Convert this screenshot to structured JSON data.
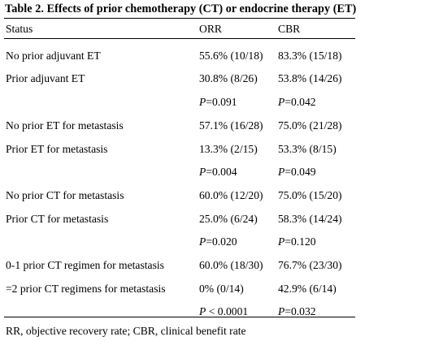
{
  "title": "Table 2. Effects of prior chemotherapy (CT) or endocrine therapy (ET)",
  "columns": [
    "Status",
    "ORR",
    "CBR"
  ],
  "rows": [
    {
      "status": "No prior adjuvant ET",
      "orr": "55.6% (10/18)",
      "cbr": "83.3% (15/18)"
    },
    {
      "status": "Prior adjuvant ET",
      "orr": "30.8% (8/26)",
      "cbr": "53.8% (14/26)"
    },
    {
      "status": "",
      "orr_p": "=0.091",
      "cbr_p": "=0.042"
    },
    {
      "status": "No prior ET for metastasis",
      "orr": "57.1% (16/28)",
      "cbr": "75.0% (21/28)"
    },
    {
      "status": "Prior ET for metastasis",
      "orr": "13.3% (2/15)",
      "cbr": "53.3% (8/15)"
    },
    {
      "status": "",
      "orr_p": "=0.004",
      "cbr_p": "=0.049"
    },
    {
      "status": "No prior CT for metastasis",
      "orr": "60.0% (12/20)",
      "cbr": "75.0% (15/20)"
    },
    {
      "status": "Prior CT for metastasis",
      "orr": "25.0% (6/24)",
      "cbr": "58.3% (14/24)"
    },
    {
      "status": "",
      "orr_p": "=0.020",
      "cbr_p": "=0.120"
    },
    {
      "status": "0-1 prior CT regimen for metastasis",
      "orr": "60.0% (18/30)",
      "cbr": "76.7% (23/30)"
    },
    {
      "status": "=2 prior CT regimens for metastasis",
      "orr": "0% (0/14)",
      "cbr": "42.9% (6/14)"
    },
    {
      "status": "",
      "orr_p": " < 0.0001",
      "cbr_p": "=0.032"
    }
  ],
  "p_label": "P",
  "footnote": "RR, objective recovery rate; CBR, clinical benefit rate"
}
